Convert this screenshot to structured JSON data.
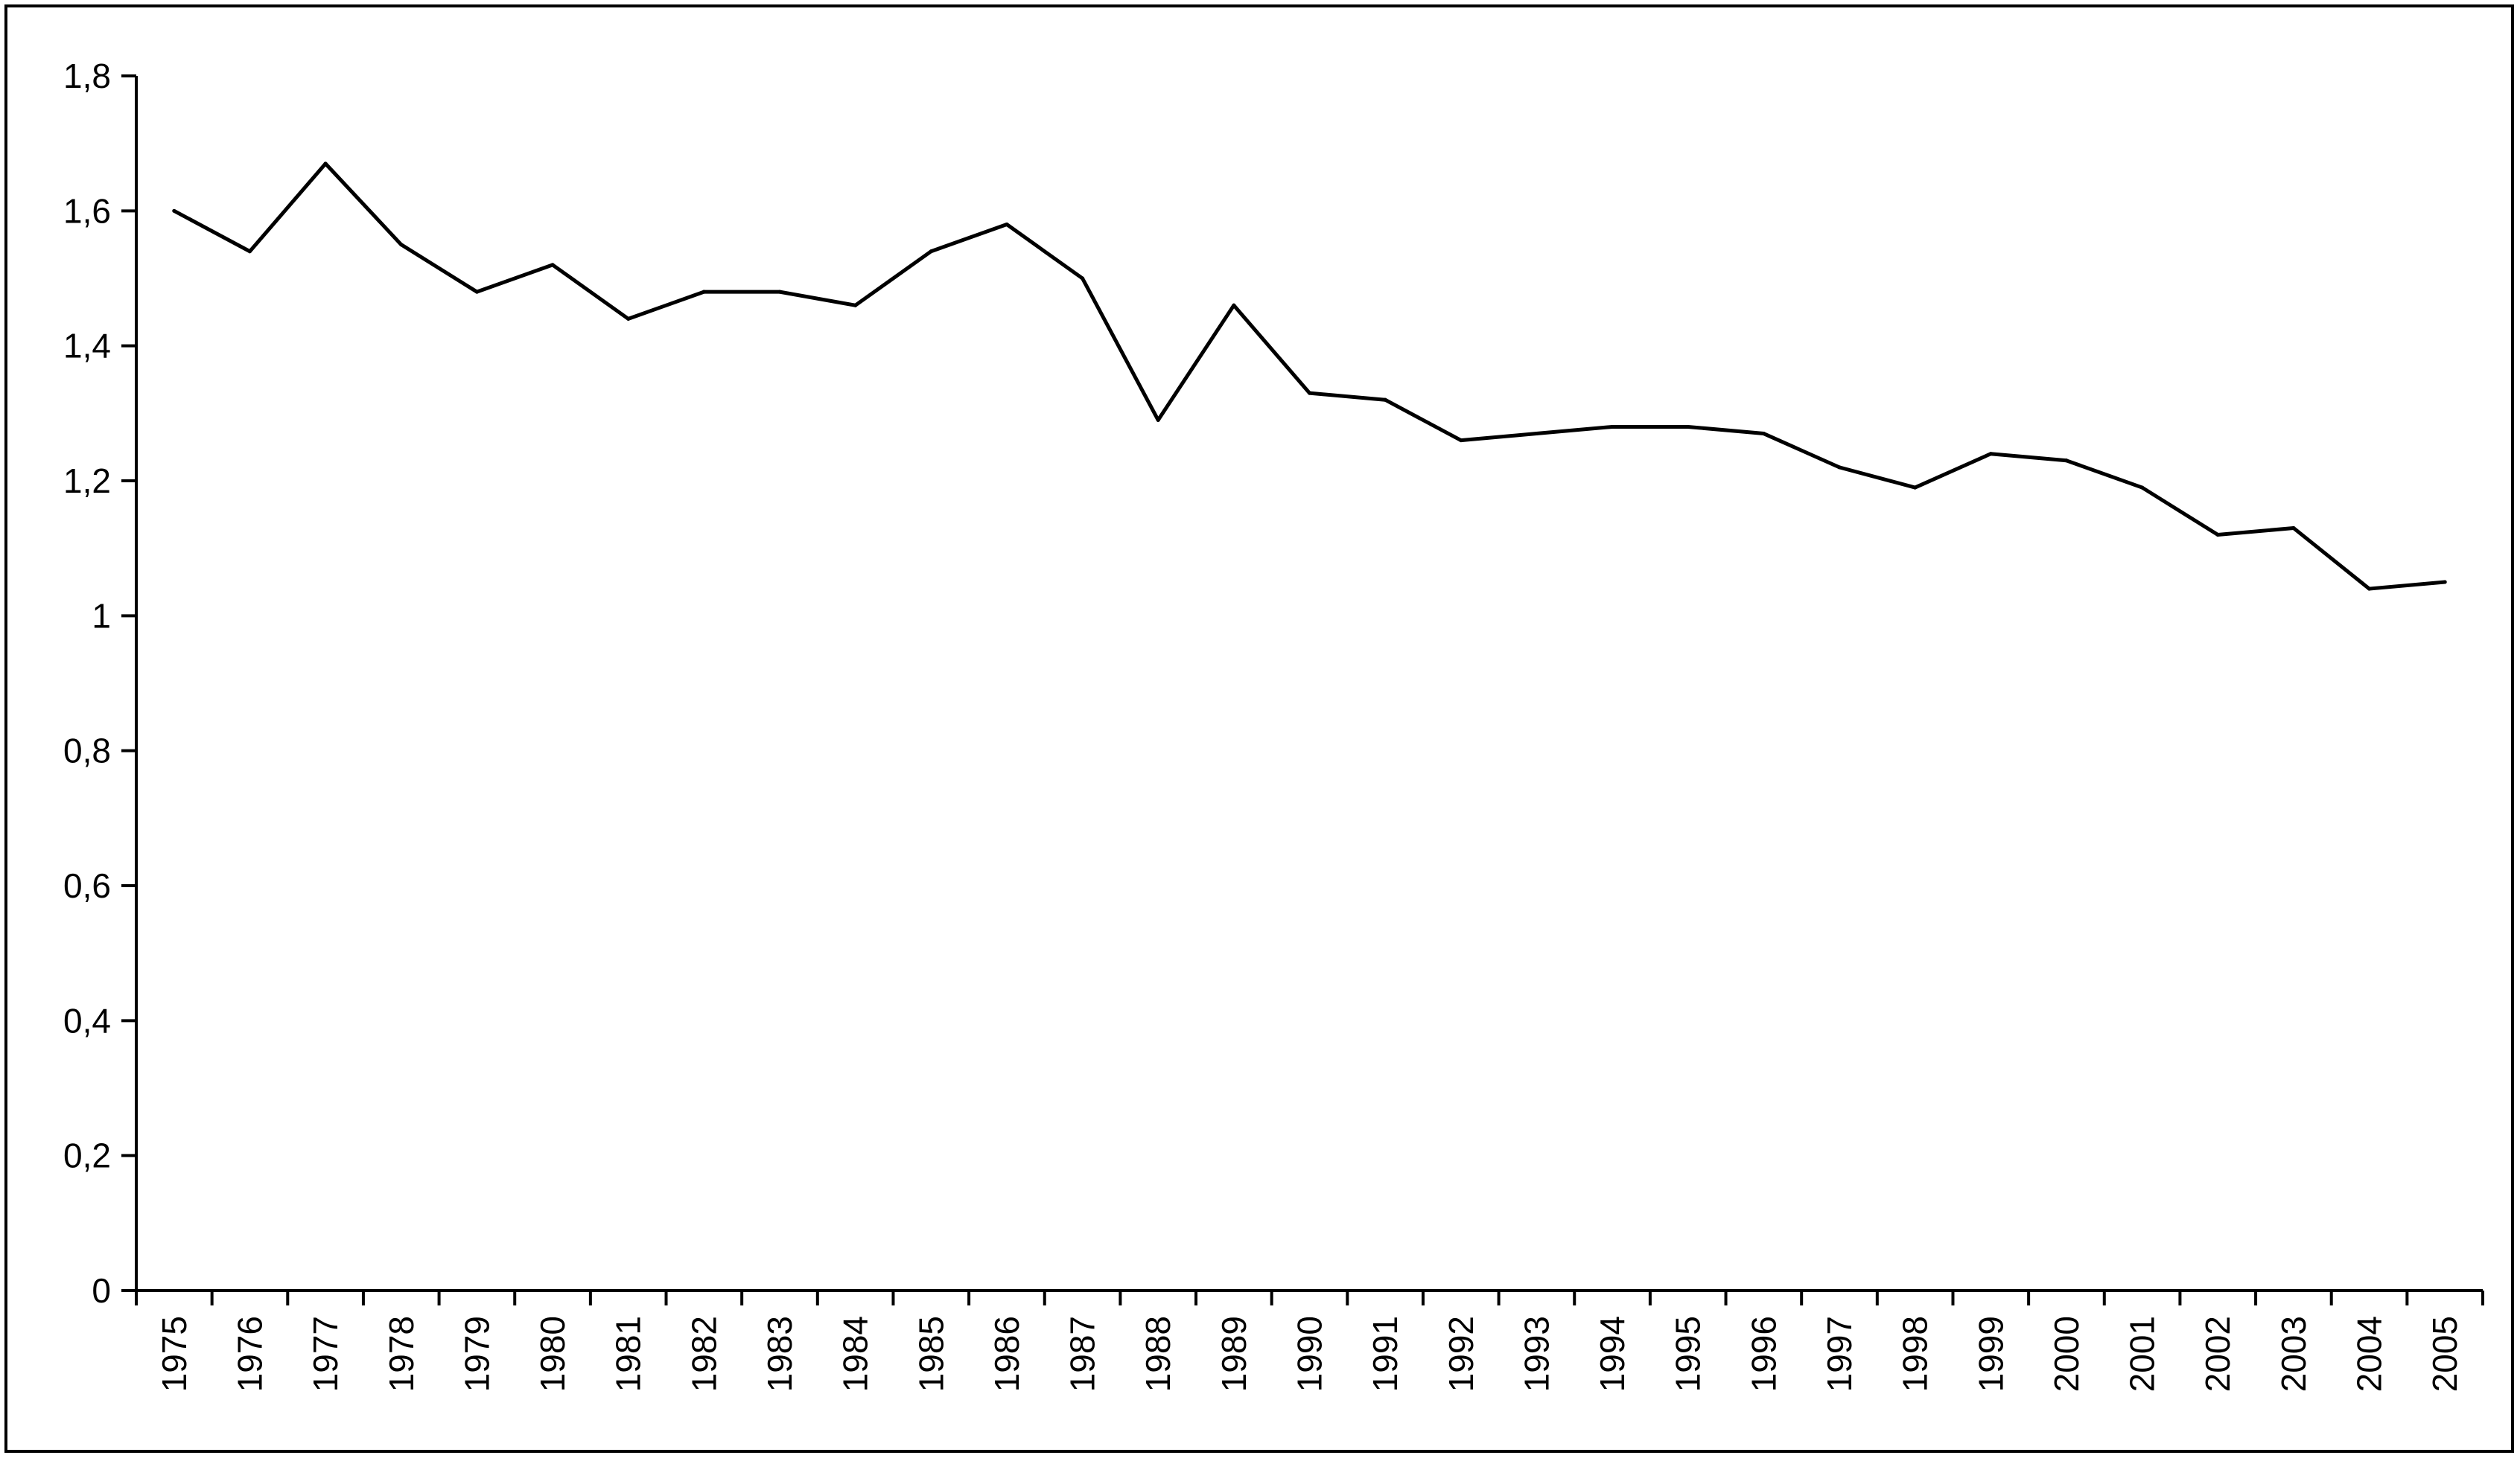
{
  "chart_data": {
    "type": "line",
    "title": "",
    "xlabel": "",
    "ylabel": "",
    "x": [
      "1975",
      "1976",
      "1977",
      "1978",
      "1979",
      "1980",
      "1981",
      "1982",
      "1983",
      "1984",
      "1985",
      "1986",
      "1987",
      "1988",
      "1989",
      "1990",
      "1991",
      "1992",
      "1993",
      "1994",
      "1995",
      "1996",
      "1997",
      "1998",
      "1999",
      "2000",
      "2001",
      "2002",
      "2003",
      "2004",
      "2005"
    ],
    "series": [
      {
        "values": [
          1.6,
          1.54,
          1.67,
          1.55,
          1.48,
          1.52,
          1.44,
          1.48,
          1.48,
          1.46,
          1.54,
          1.58,
          1.5,
          1.29,
          1.46,
          1.33,
          1.32,
          1.26,
          1.27,
          1.28,
          1.28,
          1.27,
          1.22,
          1.19,
          1.24,
          1.23,
          1.19,
          1.12,
          1.13,
          1.04,
          1.05
        ],
        "color": "#000000"
      }
    ],
    "ylim": [
      0,
      1.8
    ],
    "yticks": [
      "0",
      "0,2",
      "0,4",
      "0,6",
      "0,8",
      "1",
      "1,2",
      "1,4",
      "1,6",
      "1,8"
    ],
    "grid": false,
    "legend": "none",
    "frame": true
  }
}
